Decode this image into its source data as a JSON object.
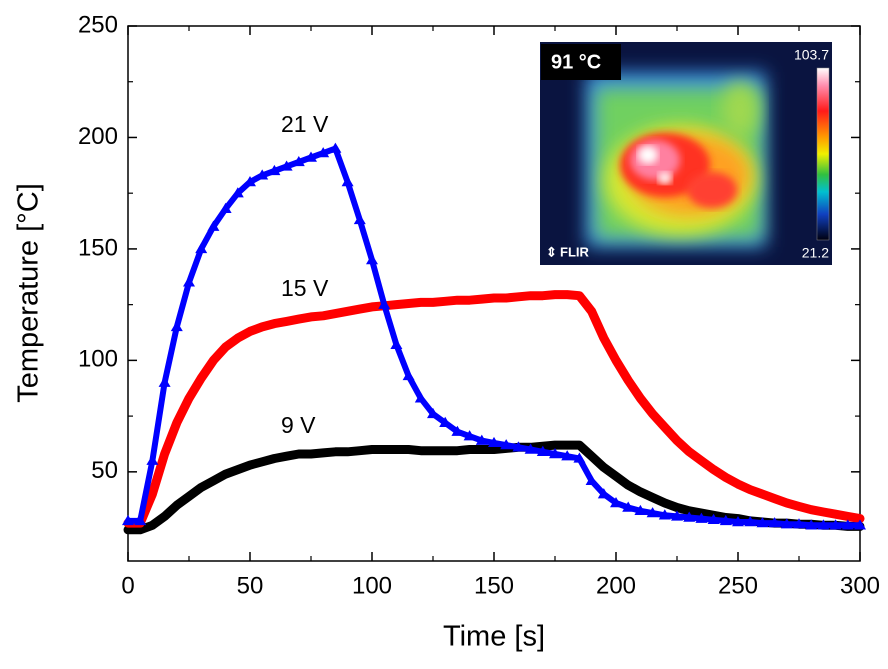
{
  "chart_data": {
    "type": "line",
    "xlabel": "Time [s]",
    "ylabel": "Temperature [°C]",
    "xlim": [
      0,
      300
    ],
    "ylim": [
      10,
      250
    ],
    "xticks": [
      0,
      50,
      100,
      150,
      200,
      250,
      300
    ],
    "yticks": [
      50,
      100,
      150,
      200,
      250
    ],
    "x": [
      0,
      5,
      10,
      15,
      20,
      25,
      30,
      35,
      40,
      45,
      50,
      55,
      60,
      65,
      70,
      75,
      80,
      85,
      90,
      95,
      100,
      105,
      110,
      115,
      120,
      125,
      130,
      135,
      140,
      145,
      150,
      155,
      160,
      165,
      170,
      175,
      180,
      185,
      190,
      195,
      200,
      205,
      210,
      215,
      220,
      225,
      230,
      235,
      240,
      245,
      250,
      255,
      260,
      265,
      270,
      275,
      280,
      285,
      290,
      295,
      300
    ],
    "series": [
      {
        "name": "9 V",
        "color": "#000000",
        "marker": "none",
        "values": [
          24,
          24,
          26,
          30,
          35,
          39,
          43,
          46,
          49,
          51,
          53,
          54.5,
          56,
          57,
          58,
          58,
          58.5,
          59,
          59,
          59.5,
          60,
          60,
          60,
          60,
          59.5,
          59.5,
          59.5,
          59.5,
          60,
          60,
          60,
          60.5,
          61,
          61,
          61.5,
          62,
          62,
          62,
          57,
          52,
          48,
          44,
          41,
          38.5,
          36,
          34,
          32.5,
          31.5,
          30.5,
          29.5,
          29,
          28,
          27.5,
          27,
          27,
          26.5,
          26.5,
          26,
          26,
          25.5,
          25.5
        ]
      },
      {
        "name": "15 V",
        "color": "#ff0000",
        "marker": "none",
        "values": [
          27,
          27,
          40,
          58,
          72,
          83,
          92,
          100,
          106,
          110,
          113,
          115,
          116.5,
          117.5,
          118.5,
          119.5,
          120,
          121,
          122,
          123,
          124,
          124.5,
          125,
          125.5,
          126,
          126,
          126.5,
          127,
          127,
          127.5,
          128,
          128,
          128.5,
          129,
          129,
          129.5,
          129.5,
          129,
          122,
          110,
          100,
          91,
          83,
          76,
          70,
          64,
          59,
          55,
          51,
          47.5,
          44.5,
          42,
          40,
          38,
          36,
          34.5,
          33,
          32,
          31,
          30,
          29
        ]
      },
      {
        "name": "21 V",
        "color": "#0000ff",
        "marker": "triangle",
        "values": [
          28,
          28,
          55,
          90,
          115,
          135,
          150,
          160,
          168,
          175,
          180,
          183,
          185,
          187,
          189,
          191,
          193,
          195,
          180,
          163,
          145,
          125,
          107,
          93,
          83,
          76,
          72,
          68,
          66,
          64,
          63,
          62,
          61,
          60,
          59,
          58,
          57,
          56,
          46,
          40,
          36,
          34,
          32.5,
          31.5,
          30.5,
          30,
          29.5,
          29,
          28.5,
          28,
          27.5,
          27.5,
          27,
          27,
          26.5,
          26.5,
          26,
          26,
          26,
          26,
          26
        ]
      }
    ],
    "inset": {
      "label": "91 °C",
      "scale_max": 103.7,
      "scale_min": 21.2,
      "logo": "FLIR"
    }
  }
}
